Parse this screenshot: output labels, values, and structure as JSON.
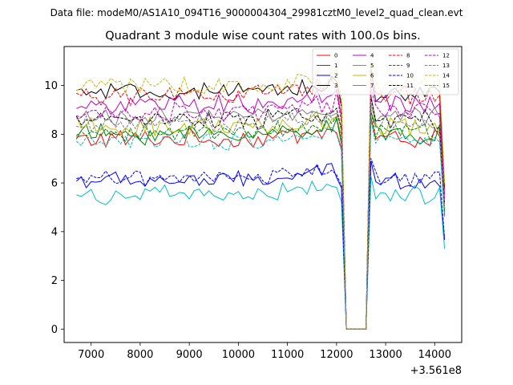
{
  "figure": {
    "suptitle": "Data file: modeM0/AS1A10_094T16_9000004304_29981cztM0_level2_quad_clean.evt"
  },
  "chart_data": {
    "type": "line",
    "title": "Quadrant 3 module wise count rates with 100.0s bins.",
    "xlabel": "",
    "ylabel": "",
    "x_offset_label": "+3.561e8",
    "xlim": [
      6450,
      14550
    ],
    "ylim": [
      -0.55,
      11.6
    ],
    "xticks": [
      7000,
      8000,
      9000,
      10000,
      11000,
      12000,
      13000,
      14000
    ],
    "xtick_labels": [
      "7000",
      "8000",
      "9000",
      "10000",
      "11000",
      "12000",
      "13000",
      "14000"
    ],
    "yticks": [
      0,
      2,
      4,
      6,
      8,
      10
    ],
    "ytick_labels": [
      "0",
      "2",
      "4",
      "6",
      "8",
      "10"
    ],
    "x_start": 6700,
    "bin_width": 100,
    "gap": {
      "start": 12200,
      "end": 12600,
      "value": 0
    },
    "x_end": 14200,
    "legend_position": "top-right",
    "legend_columns": 4,
    "series": [
      {
        "name": "0",
        "color": "#ff0000",
        "style": "solid",
        "level": 7.8,
        "amp": 0.35
      },
      {
        "name": "1",
        "color": "#008000",
        "style": "solid",
        "level": 8.0,
        "amp": 0.35
      },
      {
        "name": "2",
        "color": "#0000ff",
        "style": "solid",
        "level": 6.1,
        "amp": 0.3
      },
      {
        "name": "3",
        "color": "#000000",
        "style": "solid",
        "level": 9.7,
        "amp": 0.3
      },
      {
        "name": "4",
        "color": "#bf00bf",
        "style": "solid",
        "level": 9.2,
        "amp": 0.35
      },
      {
        "name": "5",
        "color": "#00bfbf",
        "style": "solid",
        "level": 5.5,
        "amp": 0.3
      },
      {
        "name": "6",
        "color": "#bfbf00",
        "style": "solid",
        "level": 8.3,
        "amp": 0.35
      },
      {
        "name": "7",
        "color": "#808080",
        "style": "solid",
        "level": 8.7,
        "amp": 0.3
      },
      {
        "name": "8",
        "color": "#ff0000",
        "style": "dashed",
        "level": 9.6,
        "amp": 0.35
      },
      {
        "name": "9",
        "color": "#008000",
        "style": "dashed",
        "level": 8.1,
        "amp": 0.3
      },
      {
        "name": "10",
        "color": "#0000ff",
        "style": "dashed",
        "level": 6.2,
        "amp": 0.25
      },
      {
        "name": "11",
        "color": "#000000",
        "style": "dashed",
        "level": 8.6,
        "amp": 0.35
      },
      {
        "name": "12",
        "color": "#bf00bf",
        "style": "dashed",
        "level": 8.9,
        "amp": 0.35
      },
      {
        "name": "13",
        "color": "#00bfbf",
        "style": "dashed",
        "level": 7.7,
        "amp": 0.3
      },
      {
        "name": "14",
        "color": "#bfbf00",
        "style": "dashed",
        "level": 10.0,
        "amp": 0.3
      },
      {
        "name": "15",
        "color": "#808080",
        "style": "dashed",
        "level": 8.4,
        "amp": 0.3
      }
    ]
  }
}
